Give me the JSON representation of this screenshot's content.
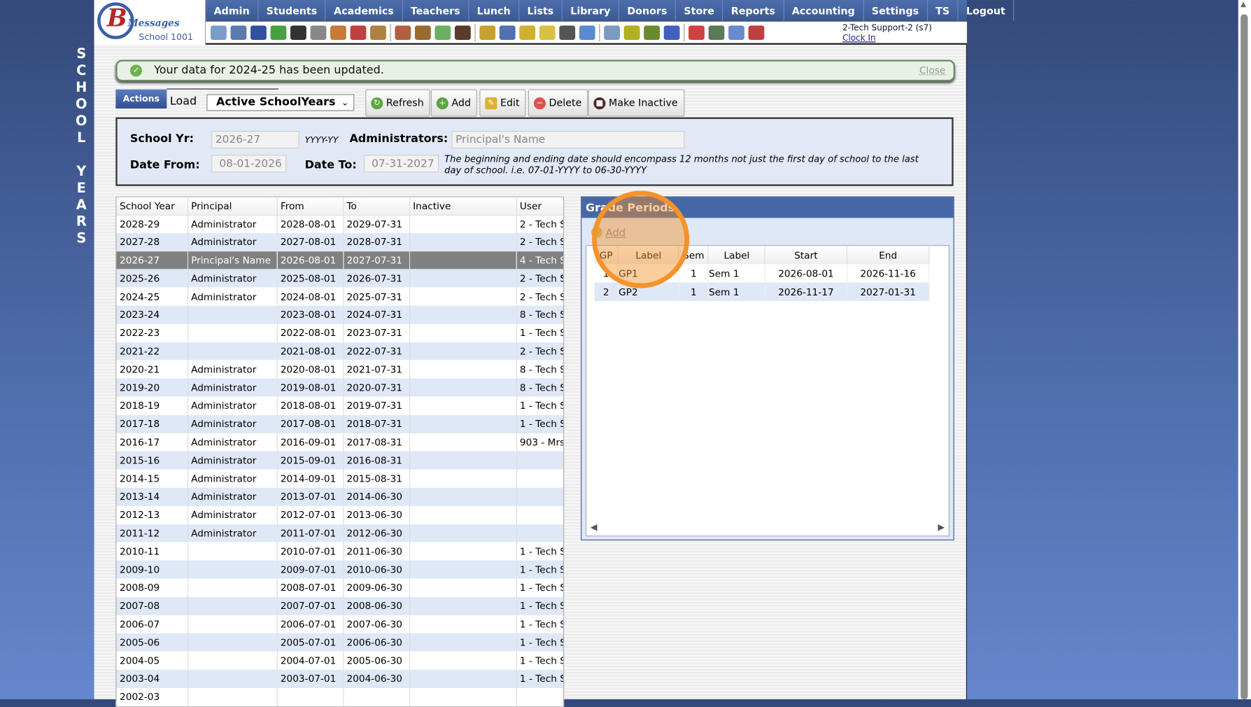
{
  "sidebar": {
    "title_letters": [
      "S",
      "C",
      "H",
      "O",
      "O",
      "L",
      "",
      "Y",
      "E",
      "A",
      "R",
      "S"
    ]
  },
  "logo": {
    "brand": "Messages",
    "school": "School 1001"
  },
  "nav": [
    "Admin",
    "Students",
    "Academics",
    "Teachers",
    "Lunch",
    "Lists",
    "Library",
    "Donors",
    "Store",
    "Reports",
    "Accounting",
    "Settings",
    "TS",
    "Logout"
  ],
  "toolbar_icons": [
    "search-icon",
    "calendar-grid-icon",
    "email-icon",
    "chat-icon",
    "phone-icon",
    "speaker-icon",
    "report-icon",
    "calendar-icon",
    "megaphone-icon",
    "|",
    "user-add-icon",
    "user-icon",
    "tag-icon",
    "users-icon",
    "|",
    "lunch-icon",
    "book-icon",
    "tag-yellow-icon",
    "export-icon",
    "person-icon",
    "clock-icon",
    "|",
    "list-icon",
    "card-icon",
    "printer-icon",
    "ap-icon",
    "|",
    "pdf-icon",
    "money-icon",
    "help-icon",
    "power-icon"
  ],
  "user": {
    "name": "2-Tech Support-2 (s7)",
    "clock_in": "Clock In"
  },
  "notice": {
    "message": "Your data for 2024-25 has been updated.",
    "close": "Close"
  },
  "actions": {
    "tab": "Actions",
    "load_label": "Load",
    "load_value": "Active SchoolYears",
    "refresh": "Refresh",
    "add": "Add",
    "edit": "Edit",
    "delete": "Delete",
    "make_inactive": "Make Inactive"
  },
  "form": {
    "school_yr_label": "School Yr:",
    "school_yr": "2026-27",
    "format_hint": "YYYY-YY",
    "admin_label": "Administrators:",
    "admin_placeholder": "Principal's Name",
    "date_from_label": "Date From:",
    "date_from": "08-01-2026",
    "date_to_label": "Date To:",
    "date_to": "07-31-2027",
    "note": "The beginning and ending date should encompass 12 months not just the first day of school to the last day of school. i.e. 07-01-YYYY to 06-30-YYYY"
  },
  "years_table": {
    "columns": [
      "School Year",
      "Principal",
      "From",
      "To",
      "Inactive",
      "User"
    ],
    "selected_index": 2,
    "rows": [
      [
        "2028-29",
        "Administrator",
        "2028-08-01",
        "2029-07-31",
        "",
        "2 - Tech S"
      ],
      [
        "2027-28",
        "Administrator",
        "2027-08-01",
        "2028-07-31",
        "",
        "2 - Tech S"
      ],
      [
        "2026-27",
        "Principal's Name",
        "2026-08-01",
        "2027-07-31",
        "",
        "4 - Tech S"
      ],
      [
        "2025-26",
        "Administrator",
        "2025-08-01",
        "2026-07-31",
        "",
        "2 - Tech S"
      ],
      [
        "2024-25",
        "Administrator",
        "2024-08-01",
        "2025-07-31",
        "",
        "2 - Tech S"
      ],
      [
        "2023-24",
        "",
        "2023-08-01",
        "2024-07-31",
        "",
        "8 - Tech S"
      ],
      [
        "2022-23",
        "",
        "2022-08-01",
        "2023-07-31",
        "",
        "1 - Tech S"
      ],
      [
        "2021-22",
        "",
        "2021-08-01",
        "2022-07-31",
        "",
        "2 - Tech S"
      ],
      [
        "2020-21",
        "Administrator",
        "2020-08-01",
        "2021-07-31",
        "",
        "8 - Tech S"
      ],
      [
        "2019-20",
        "Administrator",
        "2019-08-01",
        "2020-07-31",
        "",
        "8 - Tech S"
      ],
      [
        "2018-19",
        "Administrator",
        "2018-08-01",
        "2019-07-31",
        "",
        "1 - Tech S"
      ],
      [
        "2017-18",
        "Administrator",
        "2017-08-01",
        "2018-07-31",
        "",
        "1 - Tech S"
      ],
      [
        "2016-17",
        "Administrator",
        "2016-09-01",
        "2017-08-31",
        "",
        "903 - Mrs."
      ],
      [
        "2015-16",
        "Administrator",
        "2015-09-01",
        "2016-08-31",
        "",
        ""
      ],
      [
        "2014-15",
        "Administrator",
        "2014-09-01",
        "2015-08-31",
        "",
        ""
      ],
      [
        "2013-14",
        "Administrator",
        "2013-07-01",
        "2014-06-30",
        "",
        ""
      ],
      [
        "2012-13",
        "Administrator",
        "2012-07-01",
        "2013-06-30",
        "",
        ""
      ],
      [
        "2011-12",
        "Administrator",
        "2011-07-01",
        "2012-06-30",
        "",
        ""
      ],
      [
        "2010-11",
        "",
        "2010-07-01",
        "2011-06-30",
        "",
        "1 - Tech S"
      ],
      [
        "2009-10",
        "",
        "2009-07-01",
        "2010-06-30",
        "",
        "1 - Tech S"
      ],
      [
        "2008-09",
        "",
        "2008-07-01",
        "2009-06-30",
        "",
        "1 - Tech S"
      ],
      [
        "2007-08",
        "",
        "2007-07-01",
        "2008-06-30",
        "",
        "1 - Tech S"
      ],
      [
        "2006-07",
        "",
        "2006-07-01",
        "2007-06-30",
        "",
        "1 - Tech S"
      ],
      [
        "2005-06",
        "",
        "2005-07-01",
        "2006-06-30",
        "",
        "1 - Tech S"
      ],
      [
        "2004-05",
        "",
        "2004-07-01",
        "2005-06-30",
        "",
        "1 - Tech S"
      ],
      [
        "2003-04",
        "",
        "2003-07-01",
        "2004-06-30",
        "",
        "1 - Tech S"
      ],
      [
        "2002-03",
        "",
        "",
        "",
        "",
        ""
      ]
    ]
  },
  "grade_periods": {
    "title": "Grade Periods",
    "add": "Add",
    "columns": [
      "GP",
      "Label",
      "Sem",
      "Label",
      "Start",
      "End"
    ],
    "rows": [
      [
        "1",
        "GP1",
        "1",
        "Sem 1",
        "2026-08-01",
        "2026-11-16"
      ],
      [
        "2",
        "GP2",
        "1",
        "Sem 1",
        "2026-11-17",
        "2027-01-31"
      ]
    ]
  },
  "colors": {
    "nav": "#3d5f9c",
    "highlight": "#f5922a",
    "selected_row": "#808080",
    "alt_row": "#dfe8f6"
  }
}
